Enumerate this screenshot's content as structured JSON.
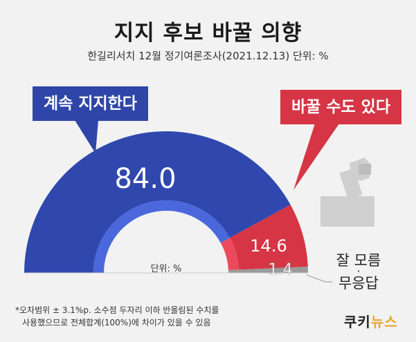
{
  "title": "지지 후보 바꿀 의향",
  "subtitle": "한길리서치 12월 정기여론조사(2021.12.13) 단위: %",
  "callouts": {
    "keep": "계속 지지한다",
    "change": "바꿀 수도 있다"
  },
  "center_unit": "단위: %",
  "footnote": [
    "*오차범위 ± 3.1%p. 소수점 두자리 이하 반올림된 수치를",
    "사용했으므로 전체합계(100%)에 차이가 있을 수 있음"
  ],
  "logo": {
    "part1": "쿠키",
    "part2": "뉴스"
  },
  "colors": {
    "keep": "#3048ad",
    "keep_inner": "#4a68dc",
    "change": "#d63545",
    "change_inner": "#ec4a5c",
    "unknown": "#9a9a9a",
    "background": "#f2f2f2"
  },
  "chart_data": {
    "type": "pie",
    "variant": "half-donut",
    "unit": "%",
    "categories": [
      "계속 지지한다",
      "바꿀 수도 있다",
      "잘 모름·무응답"
    ],
    "values": [
      84.0,
      14.6,
      1.4
    ],
    "labels": [
      "84.0",
      "14.6",
      "1.4"
    ],
    "unknown_label_lines": [
      "잘 모름",
      "·",
      "무응답"
    ]
  }
}
